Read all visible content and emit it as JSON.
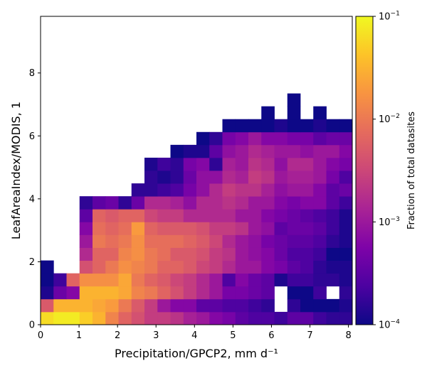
{
  "chart_data": {
    "type": "heatmap",
    "xlabel": "Precipitation/GPCP2,  mm d⁻¹",
    "ylabel": "LeafAreaIndex/MODIS,  1",
    "xlim": [
      0,
      8.1
    ],
    "ylim": [
      0,
      9.8
    ],
    "xticks": [
      "0",
      "1",
      "2",
      "3",
      "4",
      "5",
      "6",
      "7",
      "8"
    ],
    "yticks": [
      "0",
      "2",
      "4",
      "6",
      "8"
    ],
    "bin_width_x": 0.3375,
    "bin_height_y": 0.4083,
    "colorbar": {
      "label": "Fraction of total datasites",
      "scale": "log",
      "min": 0.0001,
      "max": 0.1,
      "colormap": "plasma",
      "ticks": [
        {
          "value": 0.1,
          "base": "10",
          "exp": "−1"
        },
        {
          "value": 0.01,
          "base": "10",
          "exp": "−2"
        },
        {
          "value": 0.001,
          "base": "10",
          "exp": "−3"
        },
        {
          "value": 0.0001,
          "base": "10",
          "exp": "−4"
        }
      ]
    },
    "note": "rows listed bottom (row 0, LAI 0–0.41) to top; columns x bins 0–23 left to right; null = empty bin; values are log10(fraction)",
    "log10_values": [
      [
        -1.2,
        -1.1,
        -1.1,
        -1.3,
        -1.5,
        -1.9,
        -2.2,
        -2.4,
        -2.6,
        -2.6,
        -2.7,
        -2.9,
        -3.0,
        -3.2,
        -3.3,
        -3.5,
        -3.6,
        -3.6,
        -3.7,
        -3.5,
        -3.5,
        -3.7,
        -3.8,
        -3.8
      ],
      [
        -2.3,
        -1.5,
        -1.5,
        -1.5,
        -1.6,
        -1.7,
        -2.0,
        -2.3,
        -2.6,
        -3.0,
        -3.2,
        -3.2,
        -3.5,
        -3.5,
        -3.6,
        -3.6,
        -3.7,
        -3.8,
        null,
        -3.8,
        -4.0,
        -4.0,
        -4.0,
        -3.9
      ],
      [
        -3.9,
        -3.4,
        -3.2,
        -1.5,
        -1.5,
        -1.5,
        -1.6,
        -1.9,
        -2.0,
        -2.2,
        -2.4,
        -2.6,
        -2.8,
        -3.0,
        -3.3,
        -3.3,
        -3.4,
        -3.5,
        null,
        -4.0,
        -4.0,
        -3.7,
        null,
        -3.8
      ],
      [
        -4.0,
        -3.7,
        -2.2,
        -1.8,
        -1.8,
        -1.8,
        -1.6,
        -2.0,
        -2.2,
        -2.3,
        -2.5,
        -2.6,
        -2.8,
        -3.0,
        -3.6,
        -3.2,
        -3.4,
        -3.5,
        -3.9,
        -3.7,
        -3.7,
        -3.8,
        -3.8,
        -3.9
      ],
      [
        -4.0,
        null,
        null,
        -2.4,
        -2.2,
        -2.0,
        -1.8,
        -1.9,
        -2.0,
        -2.2,
        -2.2,
        -2.3,
        -2.5,
        -2.6,
        -2.8,
        -3.0,
        -3.0,
        -3.2,
        -3.3,
        -3.5,
        -3.6,
        -3.8,
        -3.9,
        -3.9
      ],
      [
        null,
        null,
        null,
        -2.8,
        -2.2,
        -2.2,
        -1.9,
        -1.8,
        -2.0,
        -2.1,
        -2.3,
        -2.3,
        -2.4,
        -2.6,
        -2.7,
        -3.0,
        -3.1,
        -3.2,
        -3.4,
        -3.6,
        -3.6,
        -3.7,
        -4.0,
        -4.0
      ],
      [
        null,
        null,
        null,
        -3.0,
        -2.0,
        -2.1,
        -2.0,
        -1.8,
        -2.1,
        -2.1,
        -2.1,
        -2.2,
        -2.3,
        -2.5,
        -2.8,
        -3.0,
        -3.1,
        -3.3,
        -3.4,
        -3.5,
        -3.5,
        -3.6,
        -3.8,
        -3.9
      ],
      [
        null,
        null,
        null,
        -3.2,
        -2.1,
        -2.2,
        -2.1,
        -1.7,
        -2.2,
        -2.3,
        -2.3,
        -2.3,
        -2.4,
        -2.6,
        -2.6,
        -2.7,
        -3.0,
        -3.1,
        -3.5,
        -3.4,
        -3.4,
        -3.5,
        -3.7,
        -3.9
      ],
      [
        null,
        null,
        null,
        -3.5,
        -2.2,
        -2.3,
        -2.2,
        -2.2,
        -2.5,
        -2.6,
        -2.6,
        -2.8,
        -2.8,
        -2.8,
        -2.8,
        -3.0,
        -3.0,
        -3.2,
        -3.3,
        -3.4,
        -3.5,
        -3.6,
        -3.7,
        -3.9
      ],
      [
        null,
        null,
        null,
        -3.8,
        -3.5,
        -3.4,
        -3.8,
        -3.4,
        -2.8,
        -2.8,
        -2.9,
        -3.1,
        -2.8,
        -2.8,
        -2.7,
        -2.8,
        -3.0,
        -3.0,
        -3.2,
        -3.3,
        -3.2,
        -3.2,
        -3.5,
        -3.7
      ],
      [
        null,
        null,
        null,
        null,
        null,
        null,
        null,
        -3.8,
        -3.8,
        -3.7,
        -3.6,
        -3.3,
        -3.1,
        -2.8,
        -2.6,
        -2.7,
        -2.7,
        -2.9,
        -3.1,
        -3.0,
        -3.0,
        -3.2,
        -3.5,
        -3.4
      ],
      [
        null,
        null,
        null,
        null,
        null,
        null,
        null,
        null,
        -3.8,
        -3.9,
        -3.8,
        -3.4,
        -3.1,
        -3.1,
        -2.8,
        -2.9,
        -2.6,
        -2.7,
        -3.0,
        -2.9,
        -2.9,
        -3.0,
        -3.3,
        -3.6
      ],
      [
        null,
        null,
        null,
        null,
        null,
        null,
        null,
        null,
        -3.9,
        -3.7,
        -3.8,
        -3.3,
        -3.2,
        -3.8,
        -2.9,
        -3.0,
        -2.7,
        -2.8,
        -3.1,
        -2.8,
        -2.8,
        -3.0,
        -3.2,
        -3.3
      ],
      [
        null,
        null,
        null,
        null,
        null,
        null,
        null,
        null,
        null,
        null,
        -4.0,
        -3.9,
        -3.9,
        -3.5,
        -3.1,
        -3.0,
        -2.8,
        -2.9,
        -3.0,
        -3.0,
        -3.1,
        -3.0,
        -3.0,
        -3.2
      ],
      [
        null,
        null,
        null,
        null,
        null,
        null,
        null,
        null,
        null,
        null,
        null,
        null,
        -4.0,
        -3.8,
        -3.3,
        -3.2,
        -3.0,
        -3.2,
        -3.2,
        -3.3,
        -3.3,
        -3.5,
        -3.4,
        -3.4
      ],
      [
        null,
        null,
        null,
        null,
        null,
        null,
        null,
        null,
        null,
        null,
        null,
        null,
        null,
        null,
        -4.0,
        -4.0,
        -4.0,
        -4.0,
        -3.9,
        -4.0,
        -4.0,
        -3.9,
        -4.0,
        -4.0
      ],
      [
        null,
        null,
        null,
        null,
        null,
        null,
        null,
        null,
        null,
        null,
        null,
        null,
        null,
        null,
        null,
        null,
        null,
        -4.0,
        null,
        -4.0,
        null,
        -4.0,
        null,
        null
      ],
      [
        null,
        null,
        null,
        null,
        null,
        null,
        null,
        null,
        null,
        null,
        null,
        null,
        null,
        null,
        null,
        null,
        null,
        null,
        null,
        -4.0,
        null,
        null,
        null,
        null
      ]
    ]
  }
}
